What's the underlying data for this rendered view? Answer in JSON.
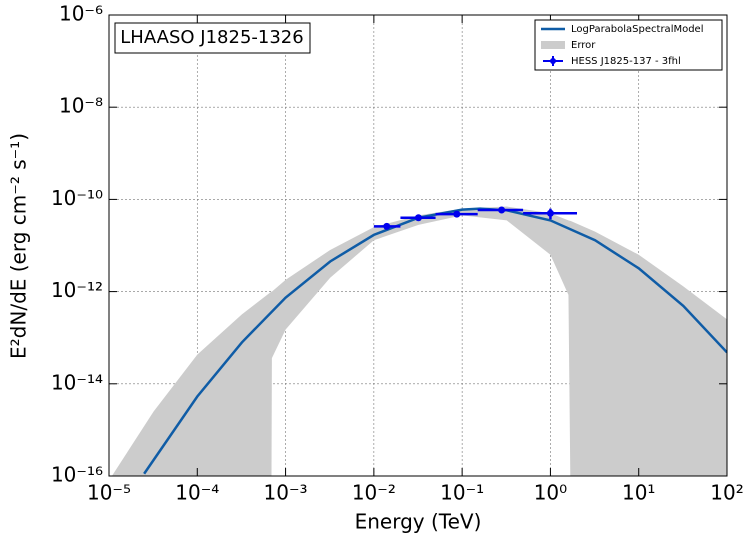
{
  "chart_data": {
    "type": "line",
    "annotation": "LHAASO J1825-1326",
    "x_label": "Energy (TeV)",
    "y_label": "E²dN/dE (erg cm⁻² s⁻¹)",
    "log_x": true,
    "log_y": true,
    "grid": true,
    "legend": "upper right",
    "xlim": [
      1e-05,
      100
    ],
    "ylim": [
      1e-16,
      1e-06
    ],
    "xticks": [
      {
        "value": 1e-05,
        "label": "10⁻⁵"
      },
      {
        "value": 0.0001,
        "label": "10⁻⁴"
      },
      {
        "value": 0.001,
        "label": "10⁻³"
      },
      {
        "value": 0.01,
        "label": "10⁻²"
      },
      {
        "value": 0.1,
        "label": "10⁻¹"
      },
      {
        "value": 1,
        "label": "10⁰"
      },
      {
        "value": 10,
        "label": "10¹"
      },
      {
        "value": 100,
        "label": "10²"
      }
    ],
    "yticks": [
      {
        "value": 1e-16,
        "label": "10⁻¹⁶"
      },
      {
        "value": 1e-14,
        "label": "10⁻¹⁴"
      },
      {
        "value": 1e-12,
        "label": "10⁻¹²"
      },
      {
        "value": 1e-10,
        "label": "10⁻¹⁰"
      },
      {
        "value": 1e-08,
        "label": "10⁻⁸"
      },
      {
        "value": 1e-06,
        "label": "10⁻⁶"
      }
    ],
    "series": [
      {
        "name": "LogParabolaSpectralModel",
        "kind": "line",
        "color": "#0f5ca6",
        "x": [
          2.5e-05,
          0.0001,
          0.00032,
          0.001,
          0.0032,
          0.01,
          0.032,
          0.1,
          0.16,
          0.32,
          1,
          3.2,
          10,
          32,
          100
        ],
        "values": [
          1.12e-16,
          5.3e-15,
          7.9e-14,
          7.4e-13,
          4.5e-12,
          1.7e-11,
          4e-11,
          6e-11,
          6.3e-11,
          5.8e-11,
          3.5e-11,
          1.3e-11,
          3.2e-12,
          4.9e-13,
          4.8e-14
        ]
      },
      {
        "name": "Error",
        "kind": "band",
        "color": "#cccccc",
        "x": [
          1e-05,
          3.2e-05,
          0.0001,
          0.00032,
          0.00069,
          0.0007,
          0.001,
          0.0032,
          0.01,
          0.032,
          0.1,
          0.32,
          1,
          1.6,
          1.7,
          3.2,
          10,
          32,
          100
        ],
        "upper": [
          8e-17,
          2.5e-15,
          4.3e-14,
          3.2e-13,
          1e-12,
          1e-12,
          1.8e-12,
          8e-12,
          2.5e-11,
          4.5e-11,
          6.3e-11,
          7e-11,
          5e-11,
          3.5e-11,
          3.4e-11,
          2e-11,
          6.3e-12,
          1.3e-12,
          2.5e-13
        ],
        "lower": [
          1e-17,
          1e-17,
          1e-17,
          1e-17,
          1e-17,
          3.6e-14,
          1.5e-13,
          2e-12,
          1.3e-11,
          2.8e-11,
          4.5e-11,
          3.5e-11,
          6.3e-12,
          8.5e-13,
          1e-17,
          1e-17,
          1e-17,
          1e-17,
          1e-17
        ]
      },
      {
        "name": "HESS J1825-137 - 3fhl",
        "kind": "errorbar",
        "color": "#0000ee",
        "x": [
          0.014,
          0.032,
          0.087,
          0.28,
          1.0
        ],
        "values": [
          2.6e-11,
          4e-11,
          4.8e-11,
          5.9e-11,
          5e-11
        ],
        "yerr": [
          2e-12,
          3e-12,
          3e-12,
          5e-12,
          1.3e-11
        ],
        "x_low": [
          0.01,
          0.02,
          0.05,
          0.15,
          0.49
        ],
        "x_high": [
          0.02,
          0.05,
          0.15,
          0.49,
          2.0
        ]
      }
    ]
  }
}
